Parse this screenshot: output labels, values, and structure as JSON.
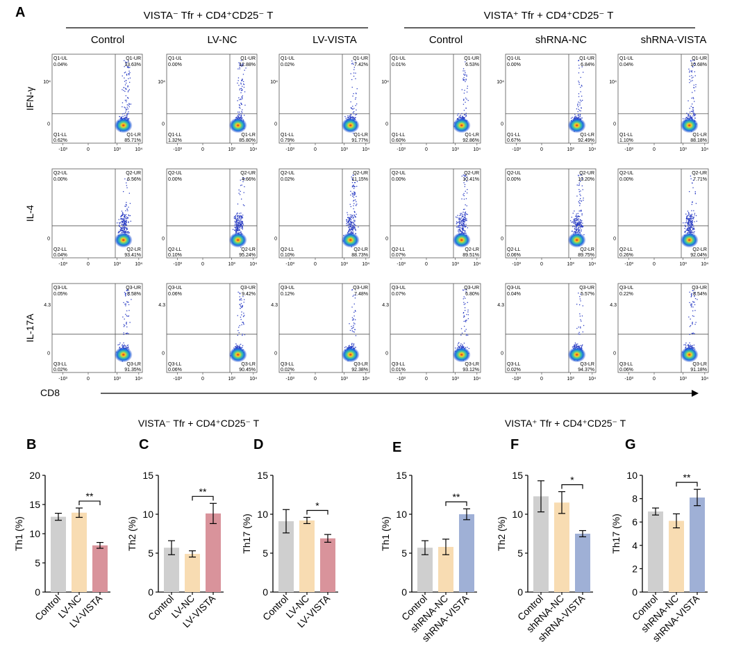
{
  "figure": {
    "panel_label": "A",
    "x_axis_label": "CD8",
    "quadrant_prefixes": [
      "Q1",
      "Q2",
      "Q3"
    ],
    "quadrant_names": [
      "UL",
      "UR",
      "LL",
      "LR"
    ],
    "y_tick_labels": [
      "10⁴",
      "",
      "4.3"
    ],
    "x_tick_labels": [
      "-10³",
      "0",
      "10³",
      "10⁴"
    ]
  },
  "flow_groups": [
    {
      "title": "VISTA⁻ Tfr + CD4⁺CD25⁻ T"
    },
    {
      "title": "VISTA⁺ Tfr + CD4⁺CD25⁻ T"
    }
  ],
  "flow_columns": [
    "Control",
    "LV-NC",
    "LV-VISTA",
    "Control",
    "shRNA-NC",
    "shRNA-VISTA"
  ],
  "flow_rows": [
    {
      "marker": "IFN-γ",
      "quadrants": [
        [
          "0.04%",
          "13.63%",
          "0.62%",
          "85.71%"
        ],
        [
          "0.00%",
          "12.88%",
          "1.32%",
          "85.80%"
        ],
        [
          "0.02%",
          "7.42%",
          "0.79%",
          "91.77%"
        ],
        [
          "0.01%",
          "6.53%",
          "0.60%",
          "92.86%"
        ],
        [
          "0.00%",
          "6.84%",
          "0.67%",
          "92.49%"
        ],
        [
          "0.04%",
          "10.68%",
          "1.10%",
          "88.18%"
        ]
      ]
    },
    {
      "marker": "IL-4",
      "quadrants": [
        [
          "0.00%",
          "6.56%",
          "0.04%",
          "93.41%"
        ],
        [
          "0.00%",
          "4.66%",
          "0.10%",
          "95.24%"
        ],
        [
          "0.02%",
          "11.15%",
          "0.10%",
          "88.73%"
        ],
        [
          "0.00%",
          "10.41%",
          "0.07%",
          "89.51%"
        ],
        [
          "0.00%",
          "10.20%",
          "0.06%",
          "89.75%"
        ],
        [
          "0.00%",
          "7.71%",
          "0.26%",
          "92.04%"
        ]
      ]
    },
    {
      "marker": "IL-17A",
      "quadrants": [
        [
          "0.05%",
          "8.58%",
          "0.02%",
          "91.35%"
        ],
        [
          "0.06%",
          "9.42%",
          "0.06%",
          "90.45%"
        ],
        [
          "0.12%",
          "7.48%",
          "0.02%",
          "92.38%"
        ],
        [
          "0.07%",
          "6.80%",
          "0.01%",
          "93.12%"
        ],
        [
          "0.04%",
          "5.57%",
          "0.02%",
          "94.37%"
        ],
        [
          "0.22%",
          "8.54%",
          "0.06%",
          "91.18%"
        ]
      ]
    }
  ],
  "bar_group_titles": [
    "VISTA⁻ Tfr + CD4⁺CD25⁻ T",
    "VISTA⁺ Tfr + CD4⁺CD25⁻ T"
  ],
  "colors": {
    "control": "#cfcfcf",
    "nc": "#f8dcb2",
    "lv_vista": "#d9939b",
    "sh_vista": "#9fb0d6",
    "error": "#000000"
  },
  "chart_data": [
    {
      "label": "B",
      "type": "bar",
      "ylabel": "Th1 (%)",
      "ylim": [
        0,
        20
      ],
      "yticks": [
        0,
        5,
        10,
        15,
        20
      ],
      "categories": [
        "Control",
        "LV-NC",
        "LV-VISTA"
      ],
      "values": [
        12.9,
        13.6,
        8.0
      ],
      "errors": [
        0.6,
        0.8,
        0.5
      ],
      "bar_colors": [
        "control",
        "nc",
        "lv_vista"
      ],
      "significance": {
        "from": 1,
        "to": 2,
        "label": "**"
      }
    },
    {
      "label": "C",
      "type": "bar",
      "ylabel": "Th2 (%)",
      "ylim": [
        0,
        15
      ],
      "yticks": [
        0,
        5,
        10,
        15
      ],
      "categories": [
        "Control",
        "LV-NC",
        "LV-VISTA"
      ],
      "values": [
        5.7,
        4.9,
        10.1
      ],
      "errors": [
        0.9,
        0.4,
        1.3
      ],
      "bar_colors": [
        "control",
        "nc",
        "lv_vista"
      ],
      "significance": {
        "from": 1,
        "to": 2,
        "label": "**"
      }
    },
    {
      "label": "D",
      "type": "bar",
      "ylabel": "Th17 (%)",
      "ylim": [
        0,
        15
      ],
      "yticks": [
        0,
        5,
        10,
        15
      ],
      "categories": [
        "Control",
        "LV-NC",
        "LV-VISTA"
      ],
      "values": [
        9.1,
        9.2,
        6.9
      ],
      "errors": [
        1.5,
        0.4,
        0.5
      ],
      "bar_colors": [
        "control",
        "nc",
        "lv_vista"
      ],
      "significance": {
        "from": 1,
        "to": 2,
        "label": "*"
      }
    },
    {
      "label": "E",
      "type": "bar",
      "ylabel": "Th1 (%)",
      "ylim": [
        0,
        15
      ],
      "yticks": [
        0,
        5,
        10,
        15
      ],
      "categories": [
        "Control",
        "shRNA-NC",
        "shRNA-VISTA"
      ],
      "values": [
        5.7,
        5.8,
        10.0
      ],
      "errors": [
        0.9,
        1.0,
        0.7
      ],
      "bar_colors": [
        "control",
        "nc",
        "sh_vista"
      ],
      "significance": {
        "from": 1,
        "to": 2,
        "label": "**"
      }
    },
    {
      "label": "F",
      "type": "bar",
      "ylabel": "Th2 (%)",
      "ylim": [
        0,
        15
      ],
      "yticks": [
        0,
        5,
        10,
        15
      ],
      "categories": [
        "Control",
        "shRNA-NC",
        "shRNA-VISTA"
      ],
      "values": [
        12.3,
        11.5,
        7.5
      ],
      "errors": [
        2.0,
        1.4,
        0.4
      ],
      "bar_colors": [
        "control",
        "nc",
        "sh_vista"
      ],
      "significance": {
        "from": 1,
        "to": 2,
        "label": "*"
      }
    },
    {
      "label": "G",
      "type": "bar",
      "ylabel": "Th17 (%)",
      "ylim": [
        0,
        10
      ],
      "yticks": [
        0,
        2,
        4,
        6,
        8,
        10
      ],
      "categories": [
        "Control",
        "shRNA-NC",
        "shRNA-VISTA"
      ],
      "values": [
        6.9,
        6.1,
        8.1
      ],
      "errors": [
        0.3,
        0.6,
        0.7
      ],
      "bar_colors": [
        "control",
        "nc",
        "sh_vista"
      ],
      "significance": {
        "from": 1,
        "to": 2,
        "label": "**"
      }
    }
  ]
}
